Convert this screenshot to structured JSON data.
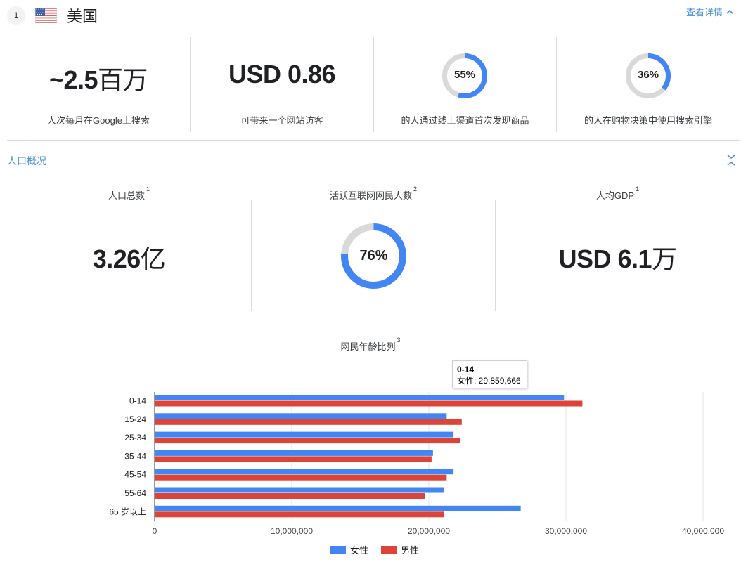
{
  "header": {
    "rank": "1",
    "country": "美国",
    "details_link": "查看详情"
  },
  "stats": [
    {
      "value": "~2.5",
      "unit": "百万",
      "caption": "人次每月在Google上搜索"
    },
    {
      "value": "USD 0.86",
      "unit": "",
      "caption": "可带来一个网站访客"
    },
    {
      "value": "55%",
      "percent": 55,
      "caption": "的人通过线上渠道首次发现商品"
    },
    {
      "value": "36%",
      "percent": 36,
      "caption": "的人在购物决策中使用搜索引擎"
    }
  ],
  "section": {
    "title": "人口概况"
  },
  "metrics": [
    {
      "label": "人口总数",
      "sup": "1",
      "value": "3.26",
      "unit": "亿"
    },
    {
      "label": "活跃互联网网民人数",
      "sup": "2",
      "value": "76%",
      "percent": 76
    },
    {
      "label": "人均GDP",
      "sup": "1",
      "value": "USD 6.1",
      "unit": "万"
    }
  ],
  "colors": {
    "accent": "#4285f4",
    "female": "#4285f4",
    "male": "#db4437",
    "ring_track": "#d9d9d9",
    "link": "#4a90d9"
  },
  "chart_data": {
    "type": "bar",
    "orientation": "horizontal",
    "title": "网民年龄比列",
    "title_sup": "3",
    "categories": [
      "0-14",
      "15-24",
      "25-34",
      "35-44",
      "45-54",
      "55-64",
      "65 岁以上"
    ],
    "series": [
      {
        "name": "女性",
        "color": "#4285f4",
        "values": [
          29859666,
          21300000,
          21800000,
          20300000,
          21800000,
          21100000,
          26700000
        ]
      },
      {
        "name": "男性",
        "color": "#db4437",
        "values": [
          31200000,
          22400000,
          22300000,
          20200000,
          21300000,
          19700000,
          21100000
        ]
      }
    ],
    "xlim": [
      0,
      40000000
    ],
    "xticks": [
      0,
      10000000,
      20000000,
      30000000,
      40000000
    ],
    "xtick_labels": [
      "0",
      "10,000,000",
      "20,000,000",
      "30,000,000",
      "40,000,000"
    ],
    "grid": true,
    "legend_position": "bottom",
    "tooltip": {
      "category": "0-14",
      "series": "女性",
      "text": "女性: 29,859,666"
    }
  }
}
